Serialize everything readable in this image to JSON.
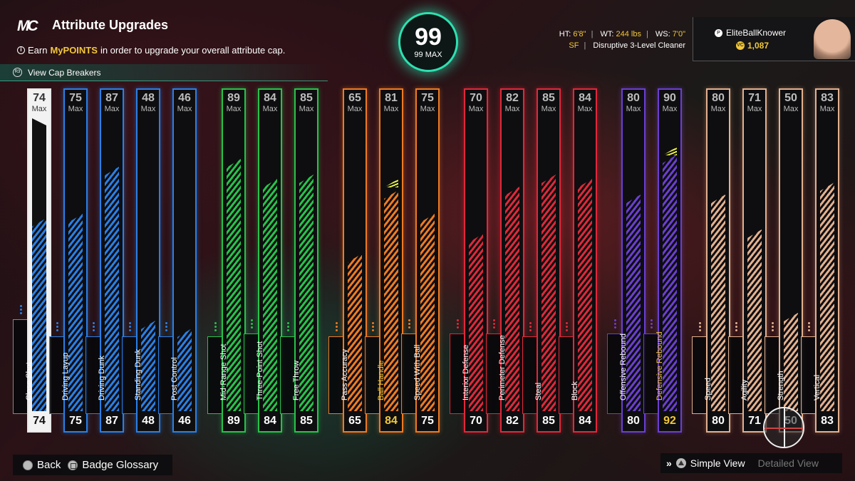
{
  "header": {
    "logo": "MC",
    "title": "Attribute Upgrades",
    "info_prefix": "Earn",
    "info_highlight": "MyPOINTS",
    "info_suffix": "in order to upgrade your overall attribute cap.",
    "cap_breakers_label": "View Cap Breakers"
  },
  "overall": {
    "value": "99",
    "max_label": "99 MAX"
  },
  "player": {
    "ht_label": "HT:",
    "ht": "6'8\"",
    "wt_label": "WT:",
    "wt": "244 lbs",
    "ws_label": "WS:",
    "ws": "7'0\"",
    "position": "SF",
    "archetype": "Disruptive 3-Level Cleaner",
    "username": "EliteBallKnower",
    "vc": "1,087"
  },
  "colors": {
    "white": "#f2f2f2",
    "blue": "#2a7fe6",
    "green": "#27c24a",
    "orange": "#ee7a22",
    "red": "#e0283a",
    "purple": "#6a3fd0",
    "tan": "#e3b08e",
    "highlight": "#f3c83a",
    "accent": "#2ee0b0"
  },
  "max_label": "Max",
  "attributes": [
    {
      "name": "Close Shot",
      "max": 74,
      "value": 74,
      "color": "white"
    },
    {
      "name": "Driving Layup",
      "max": 75,
      "value": 75,
      "color": "blue"
    },
    {
      "name": "Driving Dunk",
      "max": 87,
      "value": 87,
      "color": "blue"
    },
    {
      "name": "Standing Dunk",
      "max": 48,
      "value": 48,
      "color": "blue"
    },
    {
      "name": "Post Control",
      "max": 46,
      "value": 46,
      "color": "blue"
    },
    {
      "name": "Mid-Range Shot",
      "max": 89,
      "value": 89,
      "color": "green"
    },
    {
      "name": "Three-Point Shot",
      "max": 84,
      "value": 84,
      "color": "green"
    },
    {
      "name": "Free Throw",
      "max": 85,
      "value": 85,
      "color": "green"
    },
    {
      "name": "Pass Accuracy",
      "max": 65,
      "value": 65,
      "color": "orange"
    },
    {
      "name": "Ball Handle",
      "max": 81,
      "value": 84,
      "color": "orange",
      "boosted": true
    },
    {
      "name": "Speed With Ball",
      "max": 75,
      "value": 75,
      "color": "orange"
    },
    {
      "name": "Interior Defense",
      "max": 70,
      "value": 70,
      "color": "red"
    },
    {
      "name": "Perimeter Defense",
      "max": 82,
      "value": 82,
      "color": "red"
    },
    {
      "name": "Steal",
      "max": 85,
      "value": 85,
      "color": "red"
    },
    {
      "name": "Block",
      "max": 84,
      "value": 84,
      "color": "red"
    },
    {
      "name": "Offensive Rebound",
      "max": 80,
      "value": 80,
      "color": "purple"
    },
    {
      "name": "Defensive Rebound",
      "max": 90,
      "value": 92,
      "color": "purple",
      "boosted": true
    },
    {
      "name": "Speed",
      "max": 80,
      "value": 80,
      "color": "tan"
    },
    {
      "name": "Agility",
      "max": 71,
      "value": 71,
      "color": "tan"
    },
    {
      "name": "Strength",
      "max": 50,
      "value": 50,
      "color": "tan"
    },
    {
      "name": "Vertical",
      "max": 83,
      "value": 83,
      "color": "tan"
    }
  ],
  "footer": {
    "back": "Back",
    "badge_glossary": "Badge Glossary",
    "simple_view": "Simple View",
    "detailed_view": "Detailed View"
  }
}
